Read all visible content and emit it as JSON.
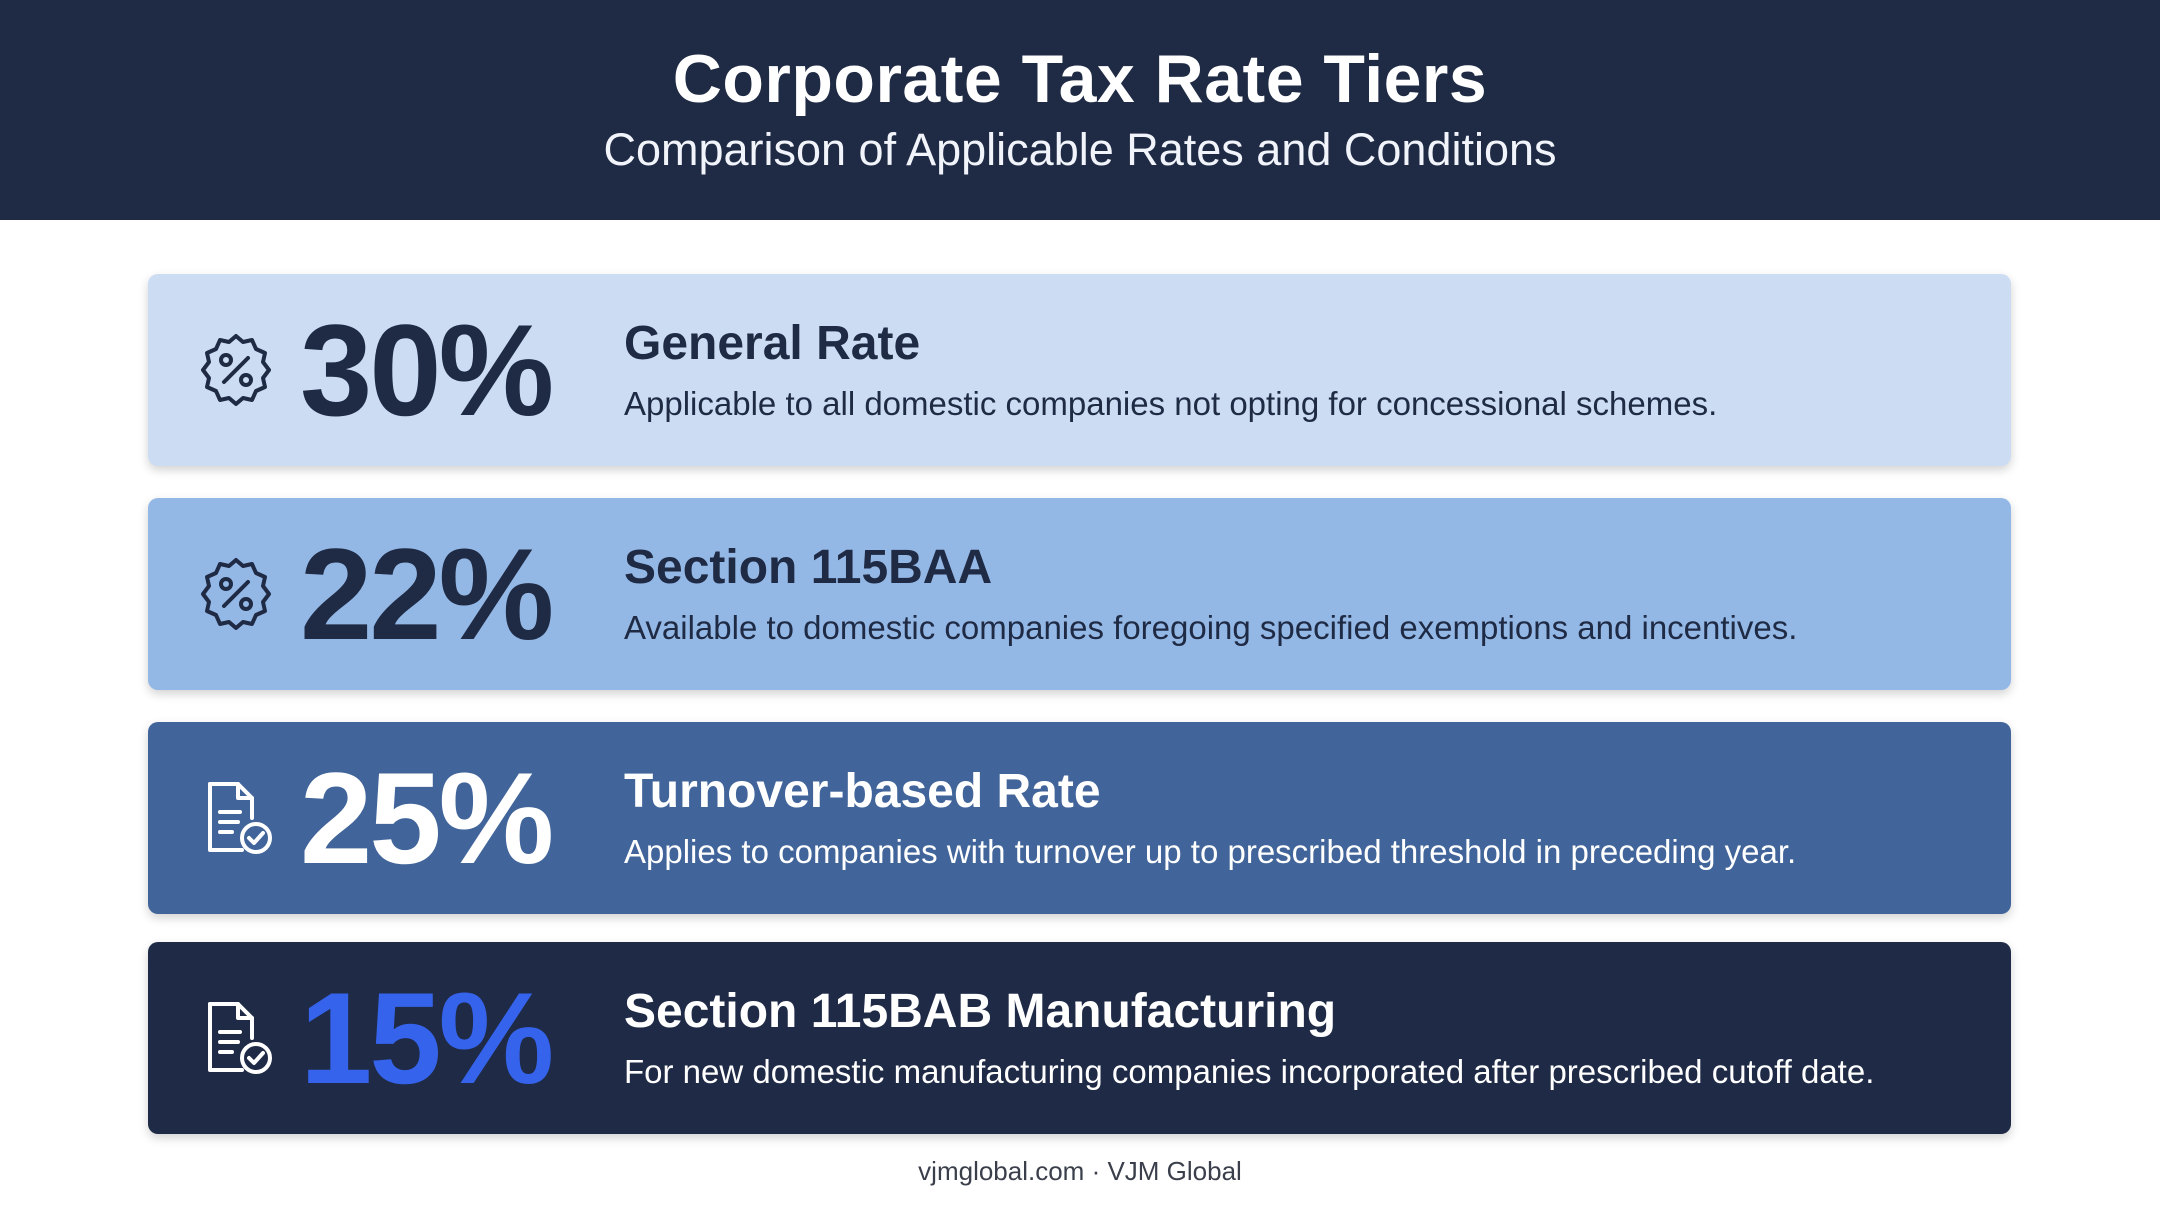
{
  "header": {
    "title": "Corporate Tax Rate Tiers",
    "subtitle": "Comparison of Applicable Rates and Conditions"
  },
  "tiers": [
    {
      "rate": "30%",
      "name": "General Rate",
      "description": "Applicable to all domestic companies not opting for concessional schemes.",
      "icon": "percent-badge-icon",
      "background": "#ccdcf3",
      "text_color": "#1f2a44"
    },
    {
      "rate": "22%",
      "name": "Section 115BAA",
      "description": "Available to domestic companies foregoing specified exemptions and incentives.",
      "icon": "percent-badge-icon",
      "background": "#94b8e6",
      "text_color": "#1f2a44"
    },
    {
      "rate": "25%",
      "name": "Turnover-based Rate",
      "description": "Applies to companies with turnover up to prescribed threshold in preceding year.",
      "icon": "document-check-icon",
      "background": "#41659a",
      "text_color": "#ffffff"
    },
    {
      "rate": "15%",
      "name": "Section 115BAB Manufacturing",
      "description": "For new domestic manufacturing companies incorporated after prescribed cutoff date.",
      "icon": "document-check-icon",
      "background": "#1e2a46",
      "text_color": "#ffffff",
      "rate_color": "#3563ec"
    }
  ],
  "footer": {
    "text": "vjmglobal.com · VJM Global"
  }
}
